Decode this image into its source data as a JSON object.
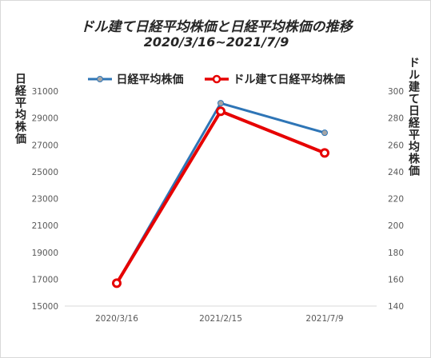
{
  "chart_data": {
    "type": "line",
    "title": "ドル建て日経平均株価と日経平均株価の推移",
    "subtitle": "2020/3/16~2021/7/9",
    "ylabel_left": "日経平均株価",
    "ylabel_right": "ドル建て日経平均株価",
    "categories": [
      "2020/3/16",
      "2021/2/15",
      "2021/7/9"
    ],
    "y_left": {
      "ticks": [
        "15000",
        "17000",
        "19000",
        "21000",
        "23000",
        "25000",
        "27000",
        "29000",
        "31000"
      ],
      "lim": [
        15000,
        31000
      ]
    },
    "y_right": {
      "ticks": [
        "140",
        "160",
        "180",
        "200",
        "220",
        "240",
        "260",
        "280",
        "300"
      ],
      "lim": [
        140,
        300
      ]
    },
    "series": [
      {
        "name": "日経平均株価",
        "axis": "left",
        "color": "#2E75B6",
        "marker_color": "#A5A5A5",
        "values": [
          16700,
          30100,
          27900
        ]
      },
      {
        "name": "ドル建て日経平均株価",
        "axis": "right",
        "color": "#E60000",
        "values": [
          157,
          285,
          254
        ]
      }
    ],
    "grid": false,
    "legend": "top"
  }
}
